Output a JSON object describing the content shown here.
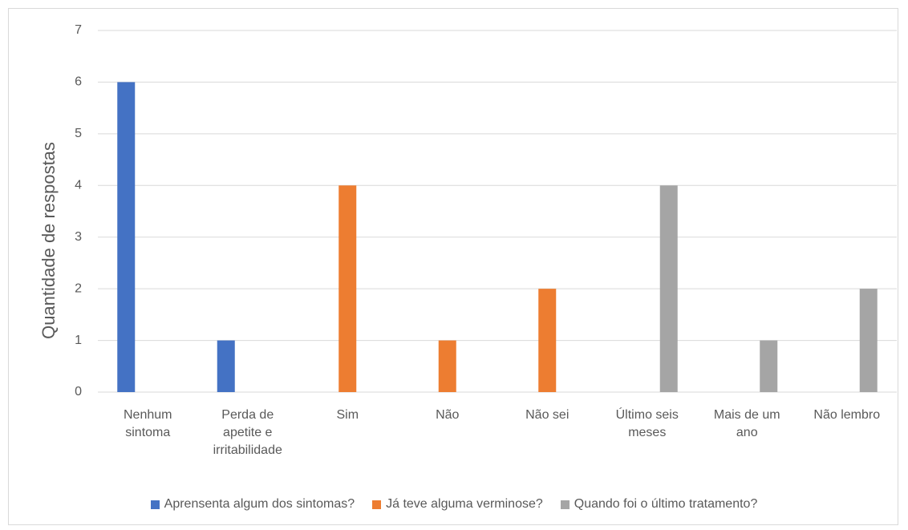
{
  "chart_data": {
    "type": "bar",
    "y_label": "Quantidade de respostas",
    "categories": [
      "Nenhum sintoma",
      "Perda de apetite e irritabilidade",
      "Sim",
      "Não",
      "Não sei",
      "Último seis meses",
      "Mais de um ano",
      "Não lembro"
    ],
    "series": [
      {
        "name": "Aprensenta algum dos sintomas?",
        "color": "#4472c4",
        "values": [
          6,
          1,
          null,
          null,
          null,
          null,
          null,
          null
        ]
      },
      {
        "name": "Já teve alguma verminose?",
        "color": "#ed7d31",
        "values": [
          null,
          null,
          4,
          1,
          2,
          null,
          null,
          null
        ]
      },
      {
        "name": "Quando foi o último tratamento?",
        "color": "#a5a5a5",
        "values": [
          null,
          null,
          null,
          null,
          null,
          4,
          1,
          2
        ]
      }
    ],
    "ylim": [
      0,
      7
    ],
    "yticks": [
      0,
      1,
      2,
      3,
      4,
      5,
      6,
      7
    ],
    "grid": true,
    "legend": "bottom"
  }
}
